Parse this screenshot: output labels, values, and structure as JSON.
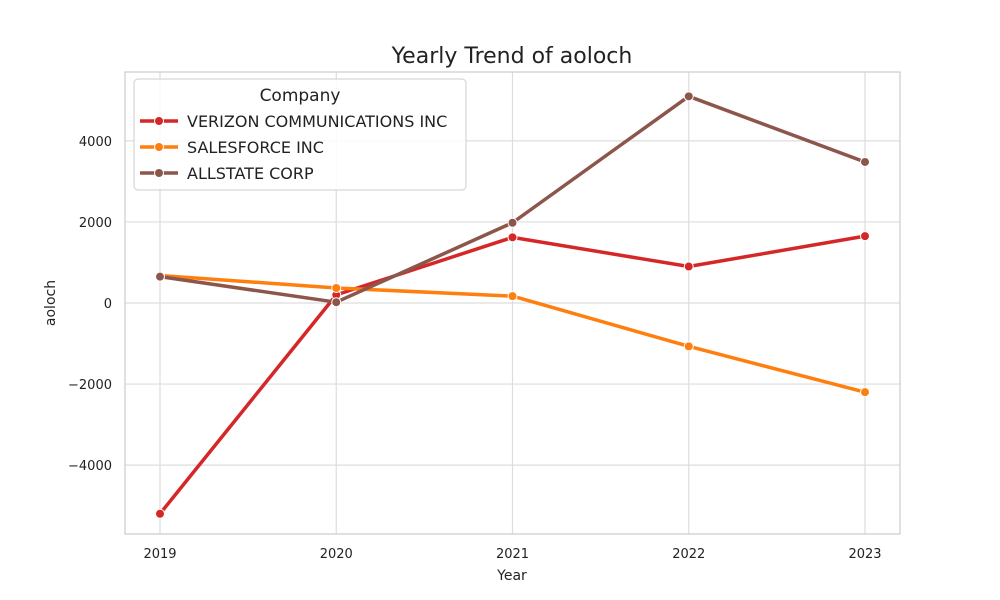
{
  "chart_data": {
    "type": "line",
    "title": "Yearly Trend of aoloch",
    "xlabel": "Year",
    "ylabel": "aoloch",
    "x": [
      "2019",
      "2020",
      "2021",
      "2022",
      "2023"
    ],
    "yticks": [
      -4000,
      -2000,
      0,
      2000,
      4000
    ],
    "ytick_labels": [
      "−4000",
      "−2000",
      "0",
      "2000",
      "4000"
    ],
    "ylim": [
      -5700,
      5700
    ],
    "grid": true,
    "legend": {
      "title": "Company",
      "placement": "top-left"
    },
    "series": [
      {
        "name": "VERIZON COMMUNICATIONS INC",
        "color": "#d62728",
        "values": [
          -5200,
          200,
          1620,
          900,
          1650
        ]
      },
      {
        "name": "SALESFORCE INC",
        "color": "#ff7f0e",
        "values": [
          680,
          370,
          170,
          -1070,
          -2200
        ]
      },
      {
        "name": "ALLSTATE CORP",
        "color": "#8c564b",
        "values": [
          650,
          20,
          1980,
          5100,
          3480
        ]
      }
    ]
  }
}
